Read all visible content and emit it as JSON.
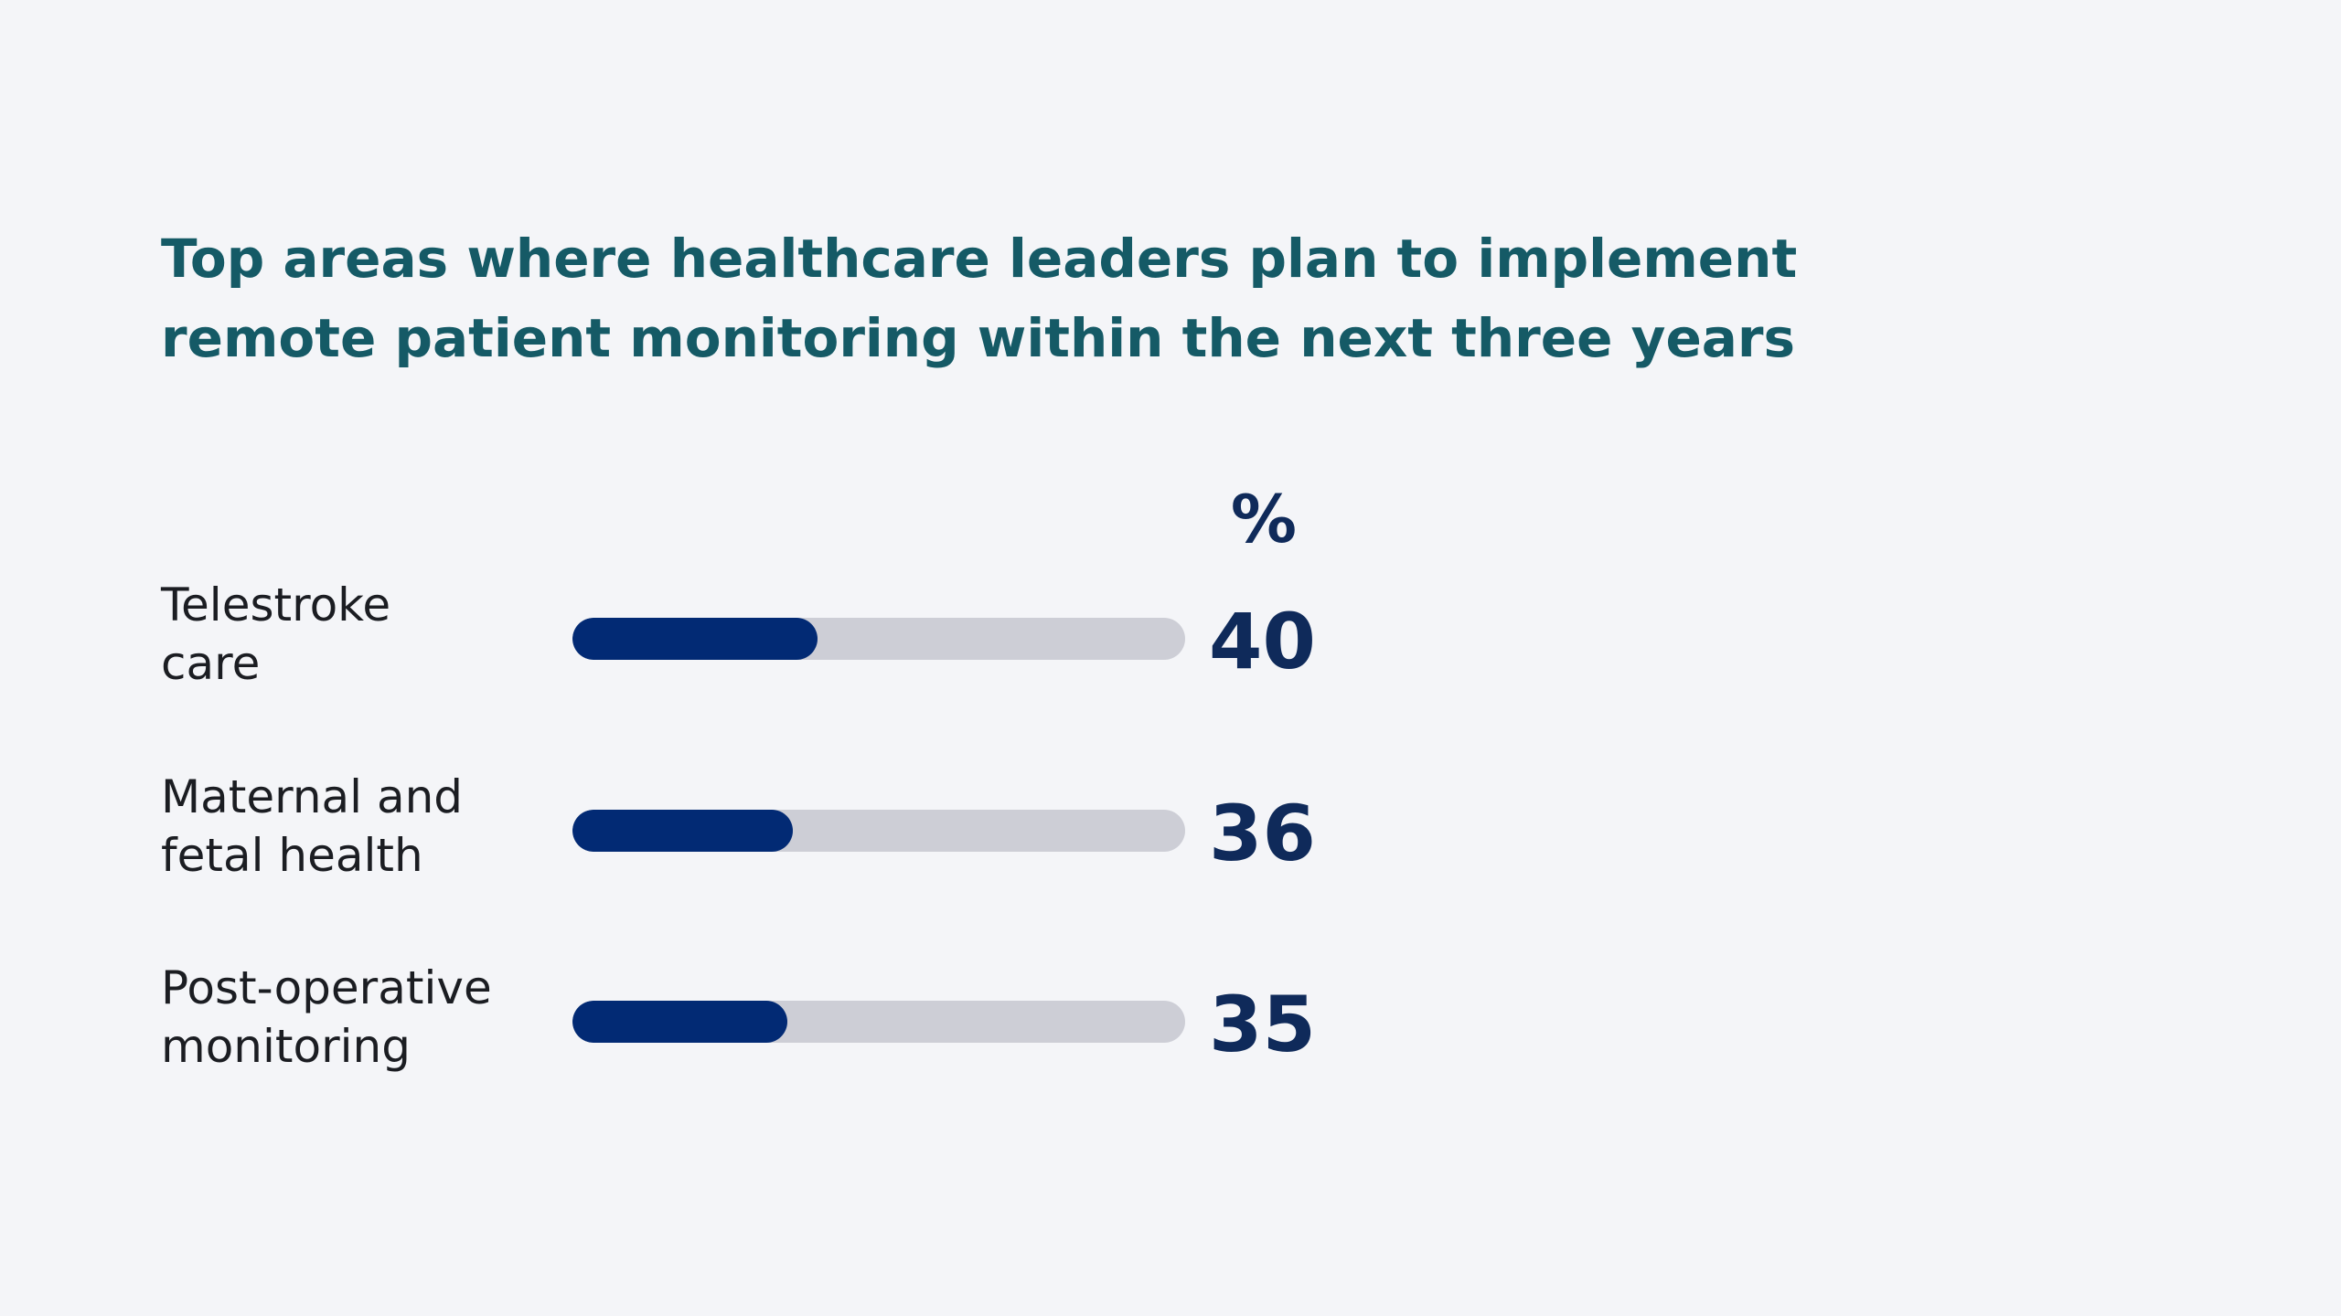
{
  "chart_data": {
    "type": "bar",
    "orientation": "horizontal",
    "title": "Top areas where healthcare leaders plan to implement remote patient monitoring within the next three years",
    "title_lines": [
      "Top areas where healthcare leaders plan to implement",
      "remote patient monitoring within the next three years"
    ],
    "unit_label": "%",
    "xlim": [
      0,
      100
    ],
    "colors": {
      "fill": "#022a74",
      "track": "#cdced6",
      "title": "#155a66",
      "value": "#0f2a5a",
      "background": "#f4f5f8"
    },
    "items": [
      {
        "label_lines": [
          "Telestroke",
          "care"
        ],
        "value": 40
      },
      {
        "label_lines": [
          "Maternal and",
          "fetal health"
        ],
        "value": 36
      },
      {
        "label_lines": [
          "Post-operative",
          "monitoring"
        ],
        "value": 35
      }
    ]
  }
}
